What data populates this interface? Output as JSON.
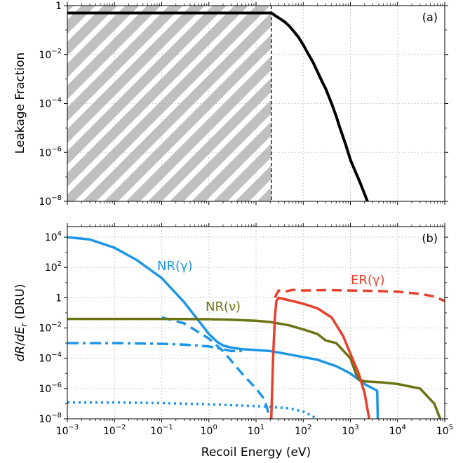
{
  "colors": {
    "black": "#000000",
    "nr": "#1e96e6",
    "nu": "#6b7314",
    "er": "#e8402c",
    "hatch": "#c0c0c0"
  },
  "chart_data": [
    {
      "panel": "(a)",
      "type": "line",
      "ylabel": "Leakage Fraction",
      "xscale": "log",
      "yscale": "log",
      "xlim": [
        0.001,
        100000
      ],
      "ylim": [
        1e-08,
        1
      ],
      "grid": true,
      "yticks": [
        {
          "v": 1e-08,
          "b": "10",
          "e": "−8"
        },
        {
          "v": 1e-06,
          "b": "10",
          "e": "−6"
        },
        {
          "v": 0.0001,
          "b": "10",
          "e": "−4"
        },
        {
          "v": 0.01,
          "b": "10",
          "e": "−2"
        },
        {
          "v": 1,
          "b": "1",
          "e": ""
        }
      ],
      "shaded_region": {
        "x_from": 0.001,
        "x_to": 21,
        "style": "diagonal-hatch"
      },
      "threshold_x": 21,
      "series": [
        {
          "style": "solid",
          "color": "#000000",
          "x": [
            0.001,
            21,
            22,
            25,
            30,
            40,
            50,
            60,
            80,
            100,
            130,
            160,
            200,
            250,
            300,
            400,
            500,
            600,
            800,
            1000,
            1300,
            1600,
            2000,
            2400,
            2700
          ],
          "y": [
            0.5,
            0.5,
            0.48,
            0.4,
            0.32,
            0.22,
            0.15,
            0.1,
            0.05,
            0.025,
            0.01,
            0.005,
            0.002,
            0.0008,
            0.0004,
            0.0001,
            3e-05,
            1e-05,
            2e-06,
            5e-07,
            1.5e-07,
            6e-08,
            2e-08,
            8e-09,
            5e-09
          ]
        }
      ]
    },
    {
      "panel": "(b)",
      "type": "line",
      "xlabel": "Recoil Energy (eV)",
      "ylabel": "dR/dEr (DRU)",
      "xscale": "log",
      "yscale": "log",
      "xlim": [
        0.001,
        100000
      ],
      "ylim": [
        1e-08,
        50000
      ],
      "grid": true,
      "yticks": [
        {
          "v": 1e-08,
          "b": "10",
          "e": "−8"
        },
        {
          "v": 1e-06,
          "b": "10",
          "e": "−6"
        },
        {
          "v": 0.0001,
          "b": "10",
          "e": "−4"
        },
        {
          "v": 0.01,
          "b": "10",
          "e": "−2"
        },
        {
          "v": 1,
          "b": "1",
          "e": ""
        },
        {
          "v": 100,
          "b": "10",
          "e": "2"
        },
        {
          "v": 10000,
          "b": "10",
          "e": "4"
        }
      ],
      "series": [
        {
          "name": "NR(γ)",
          "style": "solid",
          "color": "#1e96e6",
          "x": [
            0.001,
            0.003,
            0.01,
            0.03,
            0.1,
            0.3,
            1,
            1.5,
            2,
            3,
            5,
            10,
            20,
            50,
            100,
            200,
            500,
            1000,
            2000,
            3000,
            3500,
            3700,
            3800
          ],
          "y": [
            10000,
            7000,
            2000,
            300,
            20,
            0.5,
            0.004,
            0.0012,
            0.0007,
            0.0005,
            0.0004,
            0.00035,
            0.0003,
            0.00018,
            0.00012,
            8e-05,
            3e-05,
            1e-05,
            2e-06,
            1e-06,
            8e-07,
            7e-07,
            1e-08
          ]
        },
        {
          "style": "dash-dot",
          "color": "#1e96e6",
          "x": [
            0.001,
            0.01,
            0.1,
            0.3,
            1,
            2,
            3,
            5
          ],
          "y": [
            0.001,
            0.001,
            0.0009,
            0.0008,
            0.0006,
            0.0004,
            0.0003,
            0.0003
          ]
        },
        {
          "style": "dashed",
          "color": "#1e96e6",
          "x": [
            0.1,
            0.3,
            1,
            2,
            5,
            10,
            15,
            20
          ],
          "y": [
            0.05,
            0.02,
            0.002,
            0.0003,
            1e-05,
            1e-06,
            2e-07,
            1e-08
          ]
        },
        {
          "style": "dotted",
          "color": "#1e96e6",
          "x": [
            0.001,
            0.01,
            0.1,
            1,
            10,
            50,
            100,
            200
          ],
          "y": [
            1.2e-07,
            1.2e-07,
            1.1e-07,
            9e-08,
            7e-08,
            5e-08,
            3e-08,
            1e-08
          ]
        },
        {
          "name": "NR(ν)",
          "style": "solid",
          "color": "#6b7314",
          "x": [
            0.001,
            0.01,
            0.1,
            1,
            3,
            10,
            20,
            50,
            100,
            200,
            300,
            500,
            1000,
            1300,
            1500,
            2000,
            5000,
            10000,
            30000,
            60000,
            80000
          ],
          "y": [
            0.04,
            0.04,
            0.04,
            0.038,
            0.035,
            0.03,
            0.025,
            0.015,
            0.008,
            0.004,
            0.0015,
            0.001,
            0.0001,
            1e-05,
            4e-06,
            3e-06,
            2.5e-06,
            2e-06,
            1e-06,
            1e-07,
            1e-08
          ]
        },
        {
          "name": "ER(γ)",
          "style": "solid",
          "color": "#e8402c",
          "x": [
            21,
            22,
            23,
            25,
            27,
            30,
            40,
            60,
            100,
            200,
            400,
            700,
            1000,
            1500,
            2000,
            2500
          ],
          "y": [
            1e-08,
            1e-06,
            0.0001,
            0.05,
            0.6,
            1,
            0.8,
            0.6,
            0.4,
            0.2,
            0.05,
            0.003,
            0.0002,
            1e-05,
            5e-07,
            1e-08
          ]
        },
        {
          "style": "dashed",
          "color": "#e8402c",
          "x": [
            25,
            28,
            30,
            40,
            60,
            100,
            300,
            1000,
            3000,
            10000,
            30000,
            60000,
            100000
          ],
          "y": [
            1,
            2,
            3,
            2.5,
            3.3,
            3,
            3.2,
            3,
            2.8,
            2.5,
            1.8,
            1.2,
            0.6
          ]
        }
      ],
      "labels": [
        {
          "text": "NR(γ)",
          "color": "#1e96e6"
        },
        {
          "text": "NR(ν)",
          "color": "#6b7314"
        },
        {
          "text": "ER(γ)",
          "color": "#e8402c"
        }
      ]
    }
  ],
  "xticks": [
    {
      "v": 0.001,
      "b": "10",
      "e": "−3"
    },
    {
      "v": 0.01,
      "b": "10",
      "e": "−2"
    },
    {
      "v": 0.1,
      "b": "10",
      "e": "−1"
    },
    {
      "v": 1,
      "b": "10",
      "e": "0"
    },
    {
      "v": 10,
      "b": "10",
      "e": "1"
    },
    {
      "v": 100,
      "b": "10",
      "e": "2"
    },
    {
      "v": 1000,
      "b": "10",
      "e": "3"
    },
    {
      "v": 10000,
      "b": "10",
      "e": "4"
    },
    {
      "v": 100000,
      "b": "10",
      "e": "5"
    }
  ]
}
